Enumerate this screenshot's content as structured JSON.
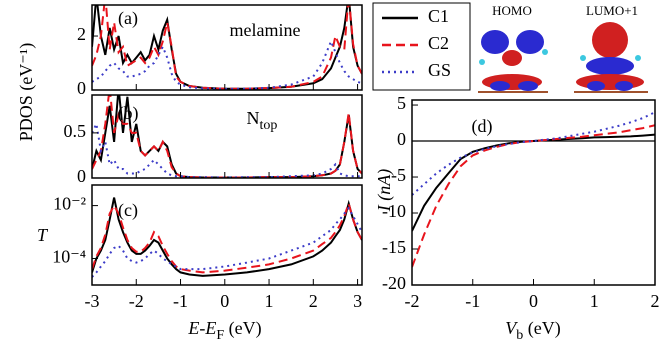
{
  "chart_data": [
    {
      "type": "line",
      "label": "(a)",
      "annotation": "melamine",
      "ylabel": "PDOS (eV⁻¹)",
      "x": [
        -3,
        -2.9,
        -2.8,
        -2.7,
        -2.6,
        -2.5,
        -2.4,
        -2.3,
        -2.2,
        -2.1,
        -2,
        -1.9,
        -1.8,
        -1.7,
        -1.6,
        -1.5,
        -1.4,
        -1.3,
        -1.2,
        -1.1,
        -1,
        -0.8,
        -0.5,
        0,
        0.5,
        1,
        1.5,
        2,
        2.2,
        2.4,
        2.5,
        2.6,
        2.7,
        2.8,
        2.9,
        3,
        3.1
      ],
      "series": [
        {
          "name": "C1",
          "color": "#000000",
          "linestyle": "solid",
          "values": [
            1.6,
            3.5,
            2.0,
            1.3,
            2.3,
            1.5,
            2.0,
            1.0,
            1.3,
            1.0,
            1.2,
            1.4,
            1.1,
            1.3,
            2.0,
            1.5,
            2.2,
            2.6,
            1.5,
            0.6,
            0.3,
            0.15,
            0.08,
            0.05,
            0.05,
            0.07,
            0.12,
            0.25,
            0.4,
            0.8,
            1.2,
            1.6,
            2.3,
            3.5,
            1.6,
            0.9,
            0.6
          ]
        },
        {
          "name": "C2",
          "color": "#e8141c",
          "linestyle": "dashed",
          "values": [
            0.9,
            1.3,
            2.0,
            3.5,
            1.5,
            2.5,
            1.4,
            1.6,
            0.9,
            1.0,
            1.1,
            1.2,
            1.0,
            1.2,
            1.6,
            1.3,
            1.8,
            2.5,
            1.6,
            0.5,
            0.3,
            0.15,
            0.08,
            0.05,
            0.05,
            0.07,
            0.12,
            0.3,
            0.5,
            1.2,
            2.0,
            1.6,
            1.5,
            3.5,
            1.7,
            0.9,
            0.6
          ]
        },
        {
          "name": "GS",
          "color": "#3c3cc8",
          "linestyle": "dotted",
          "values": [
            0.3,
            0.4,
            0.5,
            0.7,
            0.9,
            1.0,
            0.8,
            0.7,
            0.5,
            0.5,
            0.55,
            0.6,
            0.7,
            0.9,
            1.0,
            1.3,
            1.6,
            1.2,
            0.6,
            0.3,
            0.2,
            0.1,
            0.06,
            0.04,
            0.05,
            0.08,
            0.2,
            0.5,
            1.0,
            1.8,
            1.4,
            1.0,
            0.7,
            0.5,
            0.4,
            0.3,
            0.25
          ]
        }
      ],
      "xlim": [
        -3,
        3.1
      ],
      "xticks": [
        -3,
        -2,
        -1,
        0,
        1,
        2,
        3
      ],
      "ylim": [
        0,
        3.15
      ],
      "yticks": [
        0,
        2
      ]
    },
    {
      "type": "line",
      "label": "(b)",
      "annotation": {
        "main": "N",
        "sub": "top"
      },
      "x": [
        -3,
        -2.9,
        -2.8,
        -2.7,
        -2.6,
        -2.5,
        -2.4,
        -2.3,
        -2.2,
        -2.1,
        -2,
        -1.9,
        -1.8,
        -1.7,
        -1.6,
        -1.5,
        -1.4,
        -1.3,
        -1.2,
        -1.1,
        -1,
        -0.8,
        -0.5,
        0,
        0.5,
        1,
        1.5,
        2,
        2.2,
        2.4,
        2.5,
        2.6,
        2.7,
        2.8,
        2.9,
        3,
        3.1
      ],
      "series": [
        {
          "color": "#000000",
          "linestyle": "solid",
          "values": [
            0.1,
            0.3,
            0.2,
            0.5,
            0.8,
            0.4,
            1.0,
            0.5,
            0.9,
            0.4,
            0.6,
            0.3,
            0.25,
            0.3,
            0.35,
            0.3,
            0.4,
            0.35,
            0.15,
            0.05,
            0.02,
            0.01,
            0.005,
            0.005,
            0.005,
            0.01,
            0.01,
            0.02,
            0.03,
            0.05,
            0.08,
            0.15,
            0.4,
            0.7,
            0.3,
            0.1,
            0.05
          ]
        },
        {
          "color": "#e8141c",
          "linestyle": "dashed",
          "values": [
            0.1,
            0.2,
            0.3,
            0.6,
            1.0,
            0.5,
            0.7,
            0.6,
            0.6,
            0.5,
            0.5,
            0.3,
            0.25,
            0.3,
            0.35,
            0.3,
            0.4,
            0.3,
            0.12,
            0.05,
            0.02,
            0.01,
            0.005,
            0.005,
            0.005,
            0.01,
            0.01,
            0.02,
            0.03,
            0.05,
            0.08,
            0.15,
            0.4,
            0.72,
            0.3,
            0.1,
            0.05
          ]
        },
        {
          "color": "#3c3cc8",
          "linestyle": "dotted",
          "values": [
            0.5,
            0.6,
            0.3,
            0.4,
            0.15,
            0.2,
            0.1,
            0.1,
            0.05,
            0.05,
            0.05,
            0.08,
            0.1,
            0.15,
            0.2,
            0.15,
            0.1,
            0.05,
            0.03,
            0.02,
            0.02,
            0.01,
            0.01,
            0.005,
            0.01,
            0.01,
            0.02,
            0.03,
            0.05,
            0.1,
            0.15,
            0.05,
            0.03,
            0.02,
            0.02,
            0.02,
            0.02
          ]
        }
      ],
      "xlim": [
        -3,
        3.1
      ],
      "xticks": [
        -3,
        -2,
        -1,
        0,
        1,
        2,
        3
      ],
      "ylim": [
        0,
        0.92
      ],
      "yticks": [
        0,
        0.5
      ]
    },
    {
      "type": "line",
      "label": "(c)",
      "ylabel": "T",
      "yscale": "log",
      "xlabel": {
        "main": "E-E",
        "sub": "F",
        "unit": " (eV)"
      },
      "x": [
        -3,
        -2.9,
        -2.8,
        -2.7,
        -2.6,
        -2.5,
        -2.4,
        -2.3,
        -2.2,
        -2.1,
        -2,
        -1.9,
        -1.8,
        -1.7,
        -1.6,
        -1.5,
        -1.4,
        -1.3,
        -1.2,
        -1.1,
        -1,
        -0.8,
        -0.5,
        0,
        0.5,
        1,
        1.5,
        2,
        2.2,
        2.4,
        2.5,
        2.6,
        2.7,
        2.8,
        2.9,
        3,
        3.1
      ],
      "series": [
        {
          "color": "#000000",
          "linestyle": "solid",
          "values": [
            3e-05,
            0.0001,
            0.0002,
            0.0005,
            0.003,
            0.02,
            0.003,
            0.001,
            0.0004,
            0.0002,
            0.00015,
            0.00015,
            0.0002,
            0.0003,
            0.0005,
            0.0004,
            0.0002,
            0.0001,
            6e-05,
            4e-05,
            3e-05,
            2.5e-05,
            2.2e-05,
            2.5e-05,
            3e-05,
            4e-05,
            6e-05,
            0.00012,
            0.0002,
            0.0004,
            0.0007,
            0.0012,
            0.003,
            0.012,
            0.003,
            0.001,
            0.0005
          ]
        },
        {
          "color": "#e8141c",
          "linestyle": "dashed",
          "values": [
            4e-05,
            0.00012,
            0.00025,
            0.0008,
            0.005,
            0.01,
            0.005,
            0.0015,
            0.0005,
            0.00025,
            0.00018,
            0.00018,
            0.00025,
            0.0004,
            0.001,
            0.0007,
            0.0003,
            0.00015,
            8e-05,
            5e-05,
            4e-05,
            3.5e-05,
            3e-05,
            3.5e-05,
            4.5e-05,
            6e-05,
            0.0001,
            0.0002,
            0.00035,
            0.0006,
            0.001,
            0.0018,
            0.004,
            0.012,
            0.003,
            0.001,
            0.0005
          ]
        },
        {
          "color": "#3c3cc8",
          "linestyle": "dotted",
          "values": [
            2e-05,
            3e-05,
            5e-05,
            8e-05,
            0.00015,
            0.00025,
            0.0003,
            0.0002,
            0.0001,
            8e-05,
            7e-05,
            8e-05,
            0.0001,
            0.00015,
            0.0002,
            0.00015,
            0.0001,
            8e-05,
            6e-05,
            5e-05,
            4e-05,
            4e-05,
            4e-05,
            5e-05,
            7e-05,
            0.0001,
            0.0002,
            0.0004,
            0.0007,
            0.0012,
            0.002,
            0.003,
            0.005,
            0.008,
            0.004,
            0.002,
            0.001
          ]
        }
      ],
      "xlim": [
        -3,
        3.1
      ],
      "xticks": [
        -3,
        -2,
        -1,
        0,
        1,
        2,
        3
      ],
      "ylim": [
        1e-05,
        0.06
      ],
      "yticks": [
        {
          "value": 0.0001,
          "label": "10⁻⁴"
        },
        {
          "value": 0.01,
          "label": "10⁻²"
        }
      ]
    },
    {
      "type": "line",
      "label": "(d)",
      "ylabel": "I (nA)",
      "zero_line": true,
      "xlabel": {
        "main": "V",
        "sub": "b",
        "unit": " (eV)"
      },
      "x": [
        -2,
        -1.8,
        -1.6,
        -1.4,
        -1.2,
        -1,
        -0.8,
        -0.6,
        -0.4,
        -0.2,
        0,
        0.2,
        0.4,
        0.6,
        0.8,
        1,
        1.2,
        1.4,
        1.6,
        1.8,
        2
      ],
      "series": [
        {
          "color": "#000000",
          "linestyle": "solid",
          "values": [
            -12.5,
            -9,
            -6.5,
            -4.5,
            -2.5,
            -1.5,
            -1,
            -0.6,
            -0.3,
            -0.1,
            0,
            0.1,
            0.2,
            0.3,
            0.4,
            0.5,
            0.55,
            0.6,
            0.65,
            0.75,
            0.9
          ]
        },
        {
          "color": "#e8141c",
          "linestyle": "dashed",
          "values": [
            -17.5,
            -13,
            -9,
            -6,
            -3.5,
            -2,
            -1.3,
            -0.8,
            -0.4,
            -0.15,
            0,
            0.15,
            0.3,
            0.45,
            0.6,
            0.8,
            1,
            1.2,
            1.5,
            1.8,
            2.2
          ]
        },
        {
          "color": "#3c3cc8",
          "linestyle": "dotted",
          "values": [
            -7.5,
            -6,
            -4.5,
            -3.3,
            -2.3,
            -1.6,
            -1.1,
            -0.7,
            -0.4,
            -0.15,
            0,
            0.2,
            0.4,
            0.7,
            1,
            1.3,
            1.7,
            2.1,
            2.6,
            3.2,
            4
          ]
        }
      ],
      "xlim": [
        -2,
        2
      ],
      "xticks": [
        -2,
        -1,
        0,
        1,
        2
      ],
      "ylim": [
        -20,
        5.7
      ],
      "yticks": [
        -20,
        -15,
        -10,
        -5,
        0,
        5
      ]
    }
  ],
  "images": [
    {
      "label": "HOMO"
    },
    {
      "label": "LUMO+1"
    }
  ]
}
